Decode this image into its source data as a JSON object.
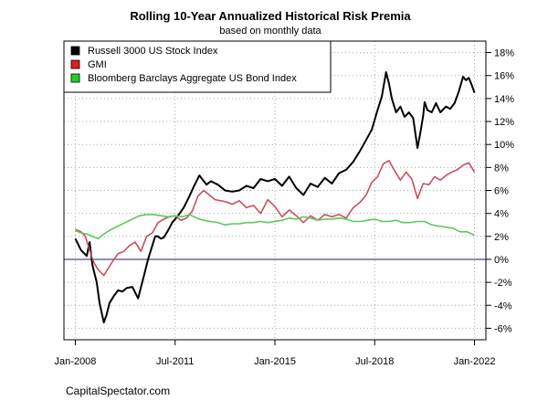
{
  "chart_data": {
    "type": "line",
    "title": "Rolling 10-Year Annualized Historical Risk Premia",
    "subtitle": "based on monthly data",
    "credit": "CapitalSpectator.com",
    "xlabel": "",
    "ylabel": "",
    "x_ticks": [
      "Jan-2008",
      "Jul-2011",
      "Jan-2015",
      "Jul-2018",
      "Jan-2022"
    ],
    "x_tick_values": [
      2008.0,
      2011.5,
      2015.0,
      2018.5,
      2022.0
    ],
    "xlim": [
      2007.6,
      2022.4
    ],
    "ylim": [
      -7,
      19
    ],
    "y_ticks": [
      -6,
      -4,
      -2,
      0,
      2,
      4,
      6,
      8,
      10,
      12,
      14,
      16,
      18
    ],
    "y_tick_labels": [
      "-6%",
      "-4%",
      "-2%",
      "0%",
      "2%",
      "4%",
      "6%",
      "8%",
      "10%",
      "12%",
      "14%",
      "16%",
      "18%"
    ],
    "grid": true,
    "reference_line": 0,
    "legend_position": "top-left",
    "series": [
      {
        "name": "Russell 3000 US Stock Index",
        "color": "#000000",
        "x": [
          2008.0,
          2008.2,
          2008.4,
          2008.5,
          2008.6,
          2008.75,
          2008.85,
          2009.0,
          2009.1,
          2009.2,
          2009.35,
          2009.5,
          2009.65,
          2009.8,
          2010.0,
          2010.2,
          2010.4,
          2010.55,
          2010.65,
          2010.8,
          2010.9,
          2011.0,
          2011.1,
          2011.25,
          2011.4,
          2011.6,
          2011.8,
          2012.0,
          2012.15,
          2012.35,
          2012.6,
          2012.75,
          2013.0,
          2013.25,
          2013.5,
          2013.75,
          2014.0,
          2014.25,
          2014.5,
          2014.75,
          2015.0,
          2015.25,
          2015.5,
          2015.75,
          2016.0,
          2016.25,
          2016.5,
          2016.75,
          2017.0,
          2017.25,
          2017.5,
          2017.75,
          2018.0,
          2018.2,
          2018.4,
          2018.6,
          2018.75,
          2018.9,
          2019.0,
          2019.1,
          2019.25,
          2019.4,
          2019.55,
          2019.7,
          2019.85,
          2020.0,
          2020.1,
          2020.2,
          2020.25,
          2020.35,
          2020.5,
          2020.65,
          2020.8,
          2021.0,
          2021.15,
          2021.3,
          2021.45,
          2021.6,
          2021.7,
          2021.8,
          2021.9,
          2022.0
        ],
        "values": [
          1.8,
          0.8,
          0.3,
          1.5,
          -0.5,
          -2.0,
          -3.8,
          -5.5,
          -4.8,
          -3.8,
          -3.2,
          -2.7,
          -2.8,
          -2.5,
          -2.4,
          -3.4,
          -1.5,
          0.0,
          0.8,
          2.0,
          2.0,
          1.8,
          1.9,
          2.5,
          3.2,
          3.8,
          4.5,
          5.5,
          6.3,
          7.3,
          6.5,
          6.8,
          6.5,
          6.0,
          5.9,
          6.0,
          6.4,
          6.2,
          7.0,
          6.8,
          7.0,
          6.4,
          7.2,
          6.2,
          5.6,
          6.6,
          6.3,
          7.1,
          6.6,
          7.5,
          7.8,
          8.5,
          9.5,
          10.4,
          11.3,
          13.0,
          14.2,
          16.3,
          15.3,
          14.0,
          12.8,
          13.3,
          12.4,
          12.8,
          12.3,
          9.7,
          11.0,
          12.5,
          13.7,
          13.0,
          12.8,
          13.6,
          12.8,
          13.3,
          13.1,
          13.6,
          14.6,
          15.9,
          15.6,
          15.8,
          15.2,
          14.5
        ]
      },
      {
        "name": "GMI",
        "color": "#e0201c",
        "x": [
          2008.0,
          2008.2,
          2008.35,
          2008.5,
          2008.65,
          2008.8,
          2009.0,
          2009.15,
          2009.3,
          2009.5,
          2009.7,
          2009.9,
          2010.1,
          2010.3,
          2010.5,
          2010.7,
          2010.9,
          2011.1,
          2011.3,
          2011.5,
          2011.7,
          2011.9,
          2012.1,
          2012.3,
          2012.5,
          2012.7,
          2012.9,
          2013.1,
          2013.3,
          2013.5,
          2013.75,
          2014.0,
          2014.25,
          2014.5,
          2014.75,
          2015.0,
          2015.25,
          2015.5,
          2015.75,
          2016.0,
          2016.25,
          2016.5,
          2016.75,
          2017.0,
          2017.25,
          2017.5,
          2017.75,
          2018.0,
          2018.2,
          2018.4,
          2018.6,
          2018.8,
          2019.0,
          2019.2,
          2019.4,
          2019.6,
          2019.8,
          2020.0,
          2020.2,
          2020.4,
          2020.6,
          2020.8,
          2021.0,
          2021.2,
          2021.4,
          2021.6,
          2021.8,
          2022.0
        ],
        "values": [
          2.6,
          2.4,
          2.0,
          0.8,
          -0.3,
          -0.9,
          -1.4,
          -0.8,
          -0.2,
          0.5,
          0.7,
          1.2,
          1.5,
          0.7,
          2.0,
          2.3,
          3.2,
          3.5,
          3.7,
          3.8,
          3.4,
          3.6,
          4.2,
          5.5,
          6.0,
          5.6,
          5.2,
          5.1,
          5.0,
          4.8,
          5.1,
          4.5,
          4.7,
          4.0,
          5.2,
          4.6,
          3.7,
          4.3,
          3.8,
          3.2,
          3.8,
          3.4,
          3.9,
          3.7,
          3.9,
          3.6,
          4.5,
          5.0,
          5.6,
          6.7,
          7.2,
          8.3,
          8.6,
          7.7,
          6.9,
          7.6,
          7.0,
          5.3,
          6.6,
          6.5,
          7.2,
          6.9,
          7.3,
          7.6,
          7.8,
          8.2,
          8.4,
          7.6
        ]
      },
      {
        "name": "Bloomberg Barclays Aggregate US Bond Index",
        "color": "#22d022",
        "x": [
          2008.0,
          2008.2,
          2008.4,
          2008.6,
          2008.8,
          2009.0,
          2009.25,
          2009.5,
          2009.75,
          2010.0,
          2010.25,
          2010.5,
          2010.75,
          2011.0,
          2011.25,
          2011.5,
          2011.75,
          2012.0,
          2012.25,
          2012.5,
          2012.75,
          2013.0,
          2013.25,
          2013.5,
          2013.75,
          2014.0,
          2014.25,
          2014.5,
          2014.75,
          2015.0,
          2015.25,
          2015.5,
          2015.75,
          2016.0,
          2016.25,
          2016.5,
          2016.75,
          2017.0,
          2017.25,
          2017.5,
          2017.75,
          2018.0,
          2018.25,
          2018.5,
          2018.75,
          2019.0,
          2019.25,
          2019.5,
          2019.75,
          2020.0,
          2020.25,
          2020.5,
          2020.75,
          2021.0,
          2021.25,
          2021.5,
          2021.75,
          2022.0
        ],
        "values": [
          2.5,
          2.3,
          2.2,
          2.0,
          1.8,
          2.2,
          2.6,
          2.9,
          3.2,
          3.5,
          3.8,
          3.9,
          3.9,
          3.8,
          3.7,
          3.8,
          3.7,
          3.9,
          3.6,
          3.4,
          3.3,
          3.2,
          3.0,
          3.1,
          3.1,
          3.2,
          3.2,
          3.3,
          3.2,
          3.3,
          3.4,
          3.6,
          3.5,
          3.7,
          3.6,
          3.4,
          3.5,
          3.5,
          3.6,
          3.5,
          3.3,
          3.3,
          3.4,
          3.5,
          3.3,
          3.3,
          3.4,
          3.2,
          3.2,
          3.3,
          3.3,
          3.0,
          2.9,
          2.8,
          2.7,
          2.4,
          2.4,
          2.1
        ]
      }
    ]
  }
}
